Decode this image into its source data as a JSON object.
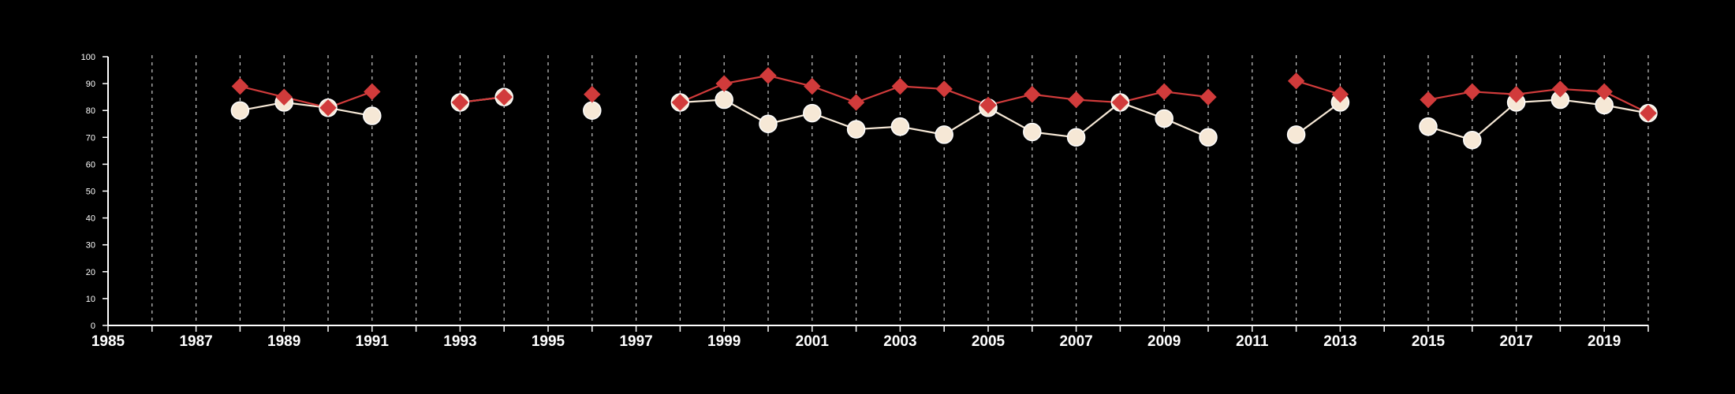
{
  "chart_data": {
    "type": "line",
    "title": "",
    "xlabel": "",
    "ylabel": "",
    "xlim": [
      1985,
      2020
    ],
    "ylim": [
      0,
      100
    ],
    "x_ticks": [
      1985,
      1987,
      1989,
      1991,
      1993,
      1995,
      1997,
      1999,
      2001,
      2003,
      2005,
      2007,
      2009,
      2011,
      2013,
      2015,
      2017,
      2019
    ],
    "y_ticks": [
      0,
      10,
      20,
      30,
      40,
      50,
      60,
      70,
      80,
      90,
      100
    ],
    "grid": "vertical dashed at every year",
    "x": [
      1985,
      1986,
      1987,
      1988,
      1989,
      1990,
      1991,
      1992,
      1993,
      1994,
      1995,
      1996,
      1997,
      1998,
      1999,
      2000,
      2001,
      2002,
      2003,
      2004,
      2005,
      2006,
      2007,
      2008,
      2009,
      2010,
      2011,
      2012,
      2013,
      2014,
      2015,
      2016,
      2017,
      2018,
      2019,
      2020
    ],
    "series": [
      {
        "marker": "diamond",
        "color": "#d13b3b",
        "values": [
          null,
          null,
          null,
          89,
          85,
          81,
          87,
          null,
          83,
          85,
          null,
          86,
          null,
          83,
          90,
          93,
          89,
          83,
          89,
          88,
          82,
          86,
          84,
          83,
          87,
          85,
          null,
          91,
          86,
          null,
          84,
          87,
          86,
          88,
          87,
          79
        ]
      },
      {
        "marker": "circle",
        "color": "#f6e8d6",
        "values": [
          null,
          null,
          null,
          80,
          83,
          81,
          78,
          null,
          83,
          85,
          null,
          80,
          null,
          83,
          84,
          75,
          79,
          73,
          74,
          71,
          81,
          72,
          70,
          83,
          77,
          70,
          null,
          71,
          83,
          null,
          74,
          69,
          83,
          84,
          82,
          79
        ]
      }
    ],
    "colors": {
      "background": "#000000",
      "axis": "#ffffff",
      "grid": "#cccccc"
    }
  }
}
